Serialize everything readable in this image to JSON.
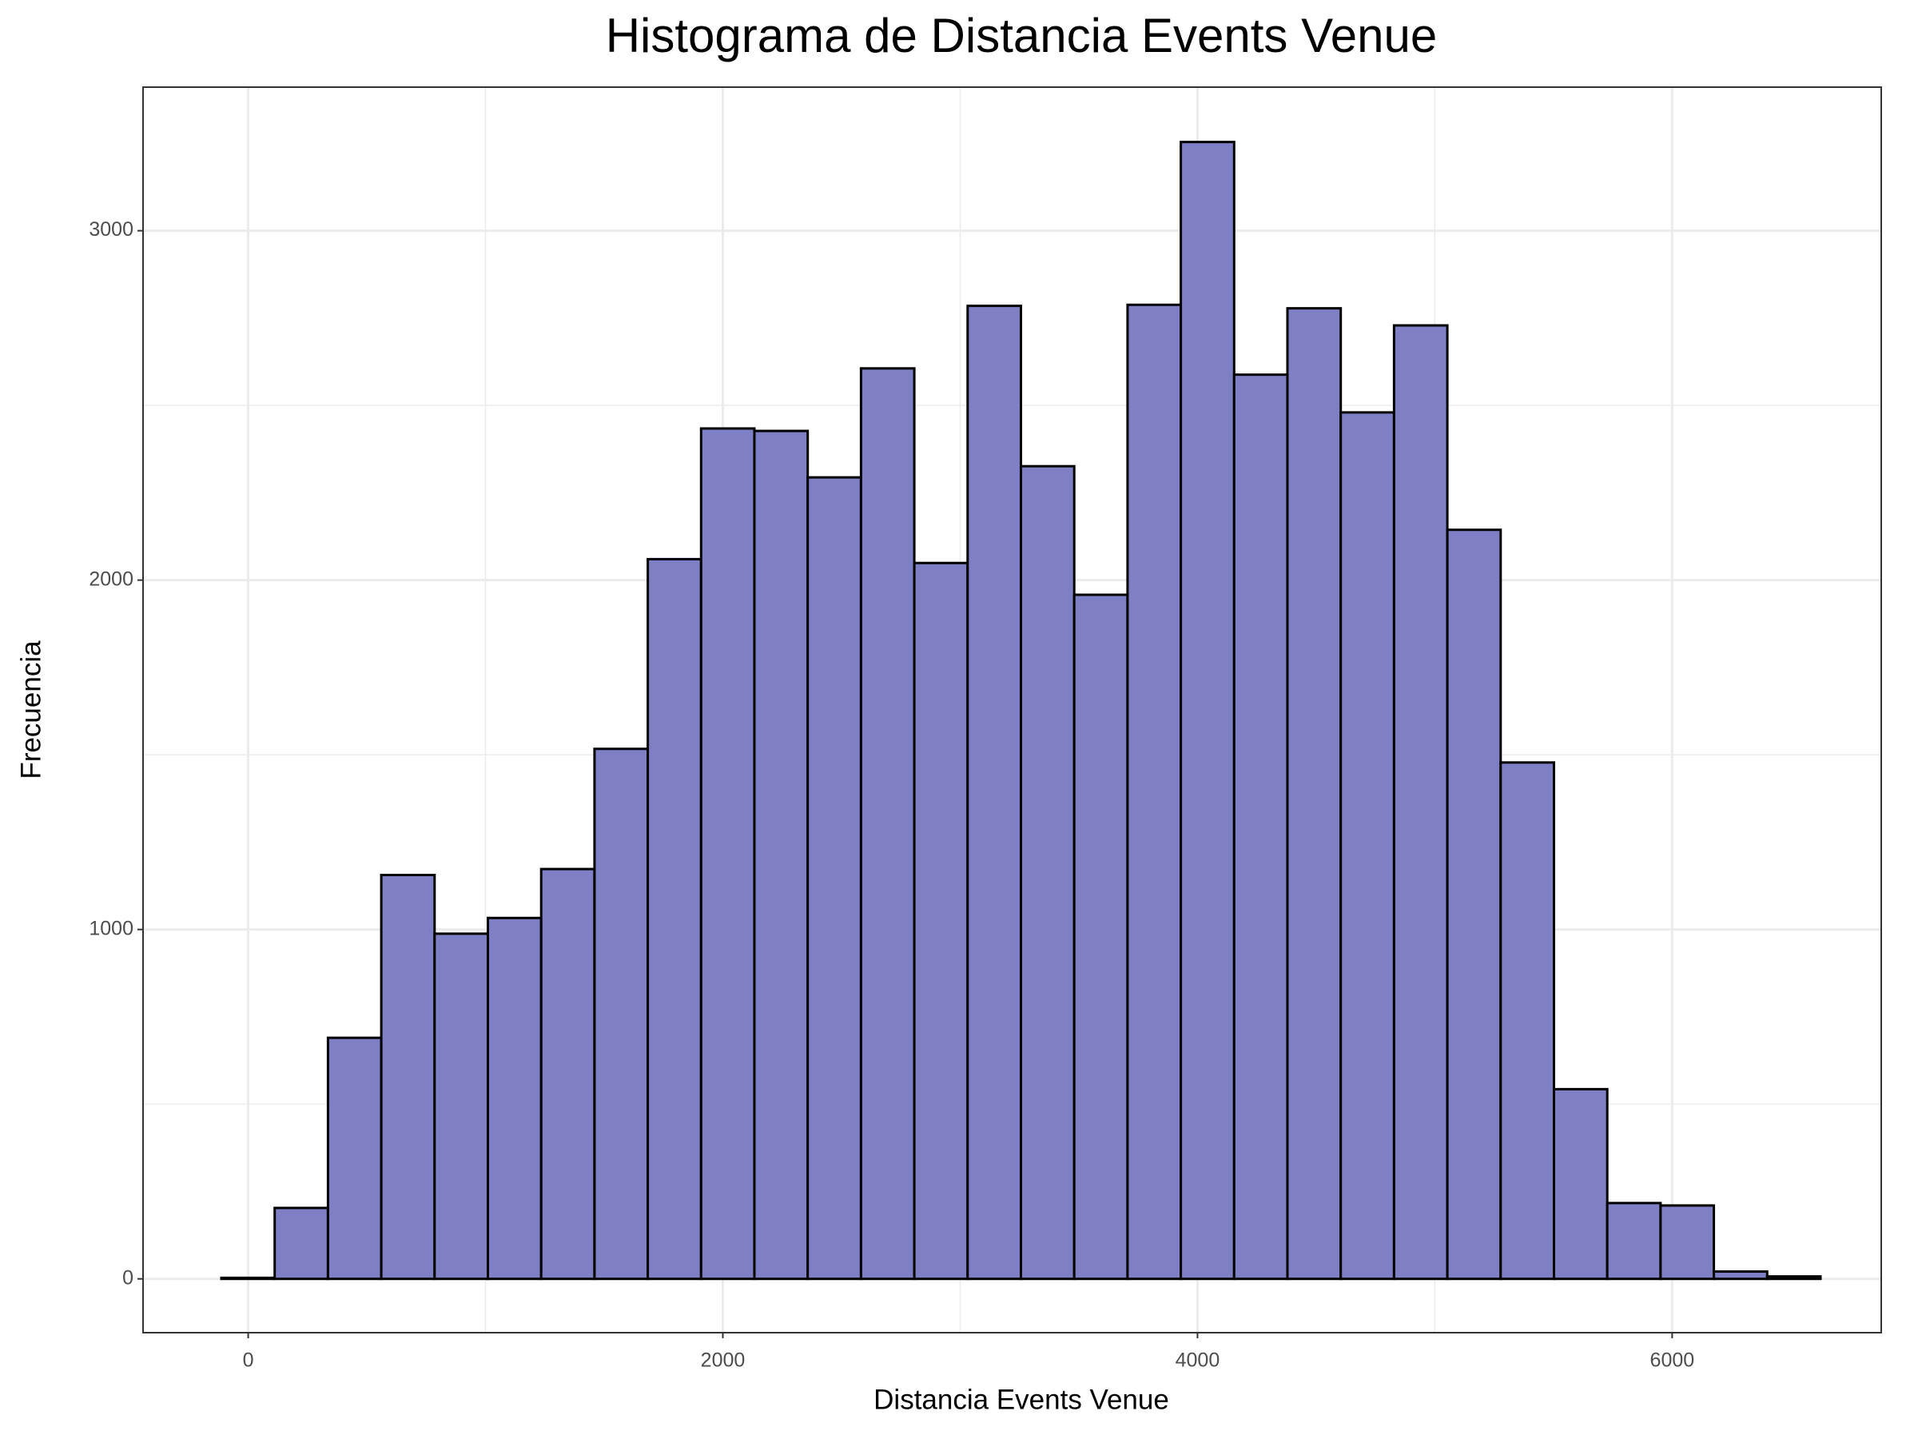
{
  "chart_data": {
    "type": "histogram",
    "title": "Histograma de Distancia Events Venue",
    "x_label": "Distancia Events Venue",
    "y_label": "Frecuencia",
    "bins": [
      -113,
      111.6,
      336.2,
      560.8,
      785.4,
      1010,
      1234.6,
      1459.2,
      1683.8,
      1908.4,
      2133,
      2357.6,
      2582.2,
      2806.8,
      3031.4,
      3256,
      3480.6,
      3705.2,
      3929.8,
      4154.4,
      4379,
      4603.6,
      4828.2,
      5052.8,
      5277.4,
      5502,
      5726.6,
      5951.2,
      6175.8,
      6400.4,
      6625
    ],
    "values": [
      3,
      203,
      690,
      1156,
      988,
      1033,
      1173,
      1517,
      2060,
      2434,
      2427,
      2294,
      2606,
      2049,
      2785,
      2326,
      1958,
      2788,
      3254,
      2588,
      2778,
      2480,
      2729,
      2144,
      1478,
      543,
      217,
      210,
      21,
      7
    ],
    "color": "#7f7fc5",
    "edge_color": "#000000",
    "xlim": [
      -443,
      6881
    ],
    "ylim": [
      -154,
      3411
    ],
    "xticks": [
      0,
      2000,
      4000,
      6000
    ],
    "yticks": [
      0,
      1000,
      2000,
      3000
    ],
    "grid": true,
    "minor_grid": true
  }
}
